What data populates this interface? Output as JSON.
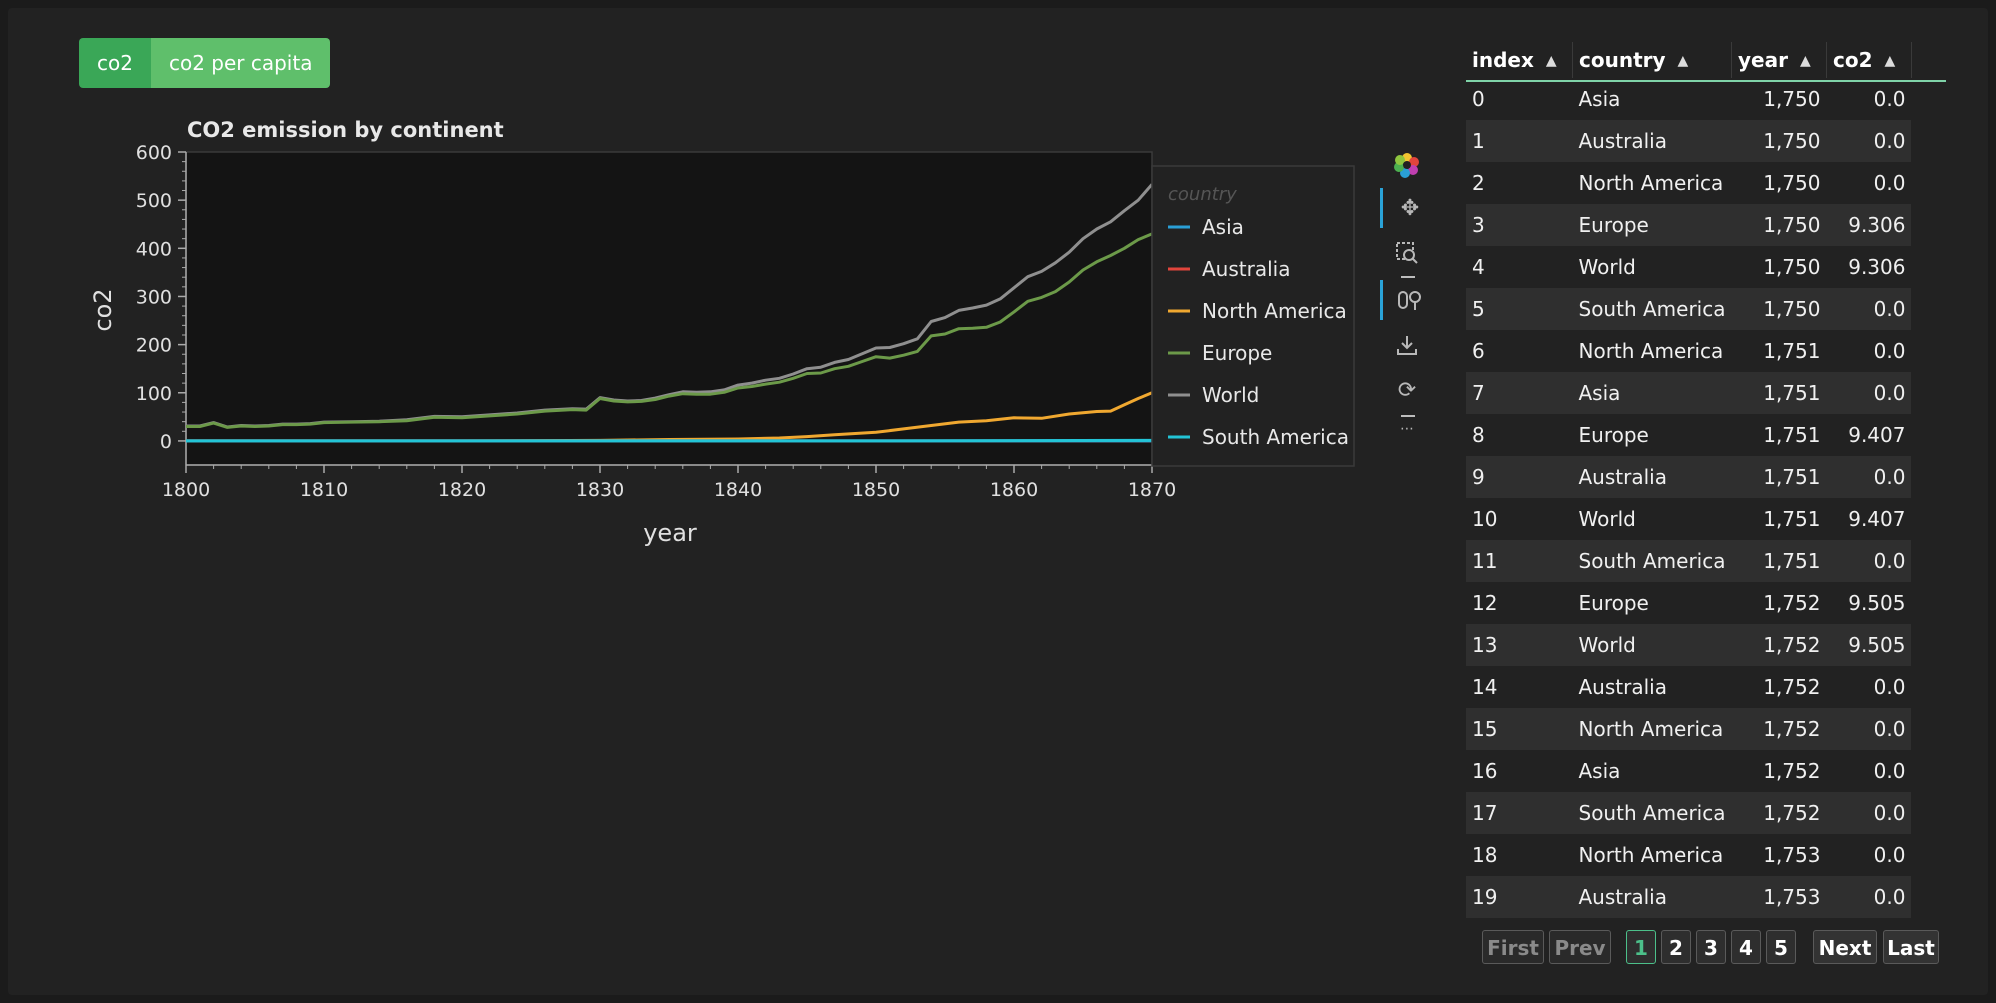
{
  "toggle": {
    "options": [
      "co2",
      "co2 per capita"
    ],
    "selected": "co2"
  },
  "chart_data": {
    "type": "line",
    "title": "CO2 emission by continent",
    "xlabel": "year",
    "ylabel": "co2",
    "xlim": [
      1800,
      1870
    ],
    "ylim": [
      -50,
      600
    ],
    "xticks": [
      1800,
      1810,
      1820,
      1830,
      1840,
      1850,
      1860,
      1870
    ],
    "yticks": [
      0,
      100,
      200,
      300,
      400,
      500,
      600
    ],
    "legend_title": "country",
    "legend_position": "right",
    "grid": false,
    "background": "#141414",
    "series": [
      {
        "name": "Asia",
        "color": "#2a9fd6",
        "x": [
          1800,
          1870
        ],
        "y": [
          0,
          0
        ]
      },
      {
        "name": "Australia",
        "color": "#e2453c",
        "x": [
          1800,
          1870
        ],
        "y": [
          0,
          0
        ]
      },
      {
        "name": "North America",
        "color": "#f0a830",
        "x": [
          1800,
          1810,
          1820,
          1830,
          1835,
          1840,
          1843,
          1845,
          1847,
          1850,
          1852,
          1854,
          1856,
          1858,
          1860,
          1862,
          1864,
          1866,
          1867,
          1868,
          1869,
          1870
        ],
        "y": [
          0,
          0,
          0,
          1,
          3,
          4,
          6,
          9,
          13,
          18,
          25,
          32,
          39,
          42,
          48,
          47,
          56,
          61,
          62,
          75,
          88,
          100
        ]
      },
      {
        "name": "Europe",
        "color": "#6c9a49",
        "x": [
          1800,
          1801,
          1802,
          1803,
          1804,
          1805,
          1806,
          1807,
          1808,
          1809,
          1810,
          1812,
          1814,
          1816,
          1818,
          1820,
          1822,
          1824,
          1826,
          1828,
          1829,
          1830,
          1831,
          1832,
          1833,
          1834,
          1835,
          1836,
          1837,
          1838,
          1839,
          1840,
          1841,
          1842,
          1843,
          1844,
          1845,
          1846,
          1847,
          1848,
          1849,
          1850,
          1851,
          1852,
          1853,
          1854,
          1855,
          1856,
          1857,
          1858,
          1859,
          1860,
          1861,
          1862,
          1863,
          1864,
          1865,
          1866,
          1867,
          1868,
          1869,
          1870
        ],
        "y": [
          30,
          30,
          37,
          28,
          31,
          30,
          31,
          34,
          34,
          35,
          38,
          39,
          40,
          42,
          49,
          48,
          52,
          56,
          62,
          65,
          64,
          88,
          83,
          81,
          82,
          86,
          93,
          98,
          97,
          97,
          101,
          110,
          113,
          118,
          122,
          130,
          140,
          141,
          150,
          155,
          165,
          175,
          172,
          178,
          186,
          218,
          222,
          233,
          234,
          236,
          247,
          268,
          290,
          298,
          310,
          330,
          355,
          372,
          385,
          400,
          418,
          430
        ]
      },
      {
        "name": "World",
        "color": "#8f8f8f",
        "x": [
          1800,
          1801,
          1802,
          1803,
          1804,
          1805,
          1806,
          1807,
          1808,
          1809,
          1810,
          1812,
          1814,
          1816,
          1818,
          1820,
          1822,
          1824,
          1826,
          1828,
          1829,
          1830,
          1831,
          1832,
          1833,
          1834,
          1835,
          1836,
          1837,
          1838,
          1839,
          1840,
          1841,
          1842,
          1843,
          1844,
          1845,
          1846,
          1847,
          1848,
          1849,
          1850,
          1851,
          1852,
          1853,
          1854,
          1855,
          1856,
          1857,
          1858,
          1859,
          1860,
          1861,
          1862,
          1863,
          1864,
          1865,
          1866,
          1867,
          1868,
          1869,
          1870
        ],
        "y": [
          31,
          31,
          38,
          29,
          32,
          31,
          32,
          35,
          35,
          36,
          39,
          40,
          41,
          44,
          51,
          50,
          54,
          58,
          64,
          67,
          66,
          90,
          85,
          83,
          84,
          89,
          96,
          102,
          101,
          102,
          106,
          116,
          120,
          126,
          130,
          139,
          150,
          153,
          163,
          169,
          181,
          193,
          194,
          202,
          212,
          248,
          256,
          271,
          276,
          282,
          295,
          318,
          341,
          352,
          370,
          392,
          420,
          440,
          455,
          478,
          500,
          533
        ]
      },
      {
        "name": "South America",
        "color": "#23c4d6",
        "x": [
          1800,
          1850,
          1870
        ],
        "y": [
          0,
          0,
          1
        ]
      }
    ]
  },
  "toolbar": {
    "tools": [
      "bokeh-logo-icon",
      "pan-icon",
      "box-zoom-icon",
      "wheel-zoom-icon",
      "save-icon",
      "reset-icon",
      "more-icon"
    ]
  },
  "table": {
    "columns": [
      "index",
      "country",
      "year",
      "co2"
    ],
    "rows": [
      [
        "0",
        "Asia",
        "1,750",
        "0.0"
      ],
      [
        "1",
        "Australia",
        "1,750",
        "0.0"
      ],
      [
        "2",
        "North America",
        "1,750",
        "0.0"
      ],
      [
        "3",
        "Europe",
        "1,750",
        "9.306"
      ],
      [
        "4",
        "World",
        "1,750",
        "9.306"
      ],
      [
        "5",
        "South America",
        "1,750",
        "0.0"
      ],
      [
        "6",
        "North America",
        "1,751",
        "0.0"
      ],
      [
        "7",
        "Asia",
        "1,751",
        "0.0"
      ],
      [
        "8",
        "Europe",
        "1,751",
        "9.407"
      ],
      [
        "9",
        "Australia",
        "1,751",
        "0.0"
      ],
      [
        "10",
        "World",
        "1,751",
        "9.407"
      ],
      [
        "11",
        "South America",
        "1,751",
        "0.0"
      ],
      [
        "12",
        "Europe",
        "1,752",
        "9.505"
      ],
      [
        "13",
        "World",
        "1,752",
        "9.505"
      ],
      [
        "14",
        "Australia",
        "1,752",
        "0.0"
      ],
      [
        "15",
        "North America",
        "1,752",
        "0.0"
      ],
      [
        "16",
        "Asia",
        "1,752",
        "0.0"
      ],
      [
        "17",
        "South America",
        "1,752",
        "0.0"
      ],
      [
        "18",
        "North America",
        "1,753",
        "0.0"
      ],
      [
        "19",
        "Australia",
        "1,753",
        "0.0"
      ]
    ]
  },
  "pagination": {
    "first": "First",
    "prev": "Prev",
    "next": "Next",
    "last": "Last",
    "pages": [
      "1",
      "2",
      "3",
      "4",
      "5"
    ],
    "current": "1"
  }
}
